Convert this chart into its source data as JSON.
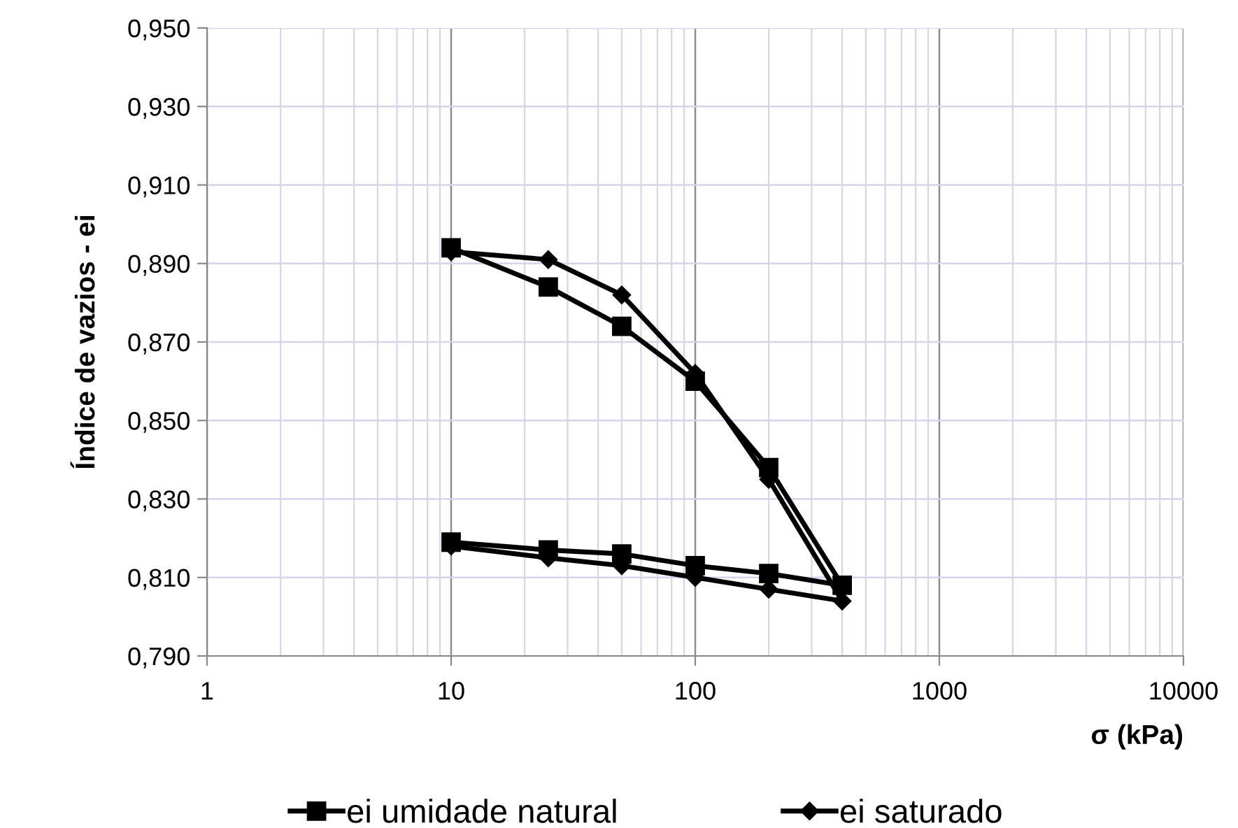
{
  "chart_data": {
    "type": "line",
    "xlabel": "σ (kPa)",
    "ylabel": "Índice de vazios - ei",
    "log": "x",
    "xlim": [
      1,
      10000
    ],
    "xticks": [
      1,
      10,
      100,
      1000,
      10000
    ],
    "ylim": [
      0.79,
      0.95
    ],
    "yticks": [
      {
        "value": 0.79,
        "label": "0,790"
      },
      {
        "value": 0.81,
        "label": "0,810"
      },
      {
        "value": 0.83,
        "label": "0,830"
      },
      {
        "value": 0.85,
        "label": "0,850"
      },
      {
        "value": 0.87,
        "label": "0,870"
      },
      {
        "value": 0.89,
        "label": "0,890"
      },
      {
        "value": 0.91,
        "label": "0,910"
      },
      {
        "value": 0.93,
        "label": "0,930"
      },
      {
        "value": 0.95,
        "label": "0,950"
      }
    ],
    "grid": true,
    "legend": "bottom",
    "line_style": "solid",
    "series": [
      {
        "name": "ei umidade natural",
        "color": "#000000",
        "marker": "square",
        "x": [
          10,
          25,
          50,
          100,
          200,
          400,
          200,
          100,
          50,
          25,
          10
        ],
        "values": [
          0.894,
          0.884,
          0.874,
          0.86,
          0.838,
          0.808,
          0.811,
          0.813,
          0.816,
          0.817,
          0.819
        ]
      },
      {
        "name": "ei saturado",
        "color": "#000000",
        "marker": "diamond",
        "x": [
          10,
          25,
          50,
          100,
          200,
          400,
          200,
          100,
          50,
          25,
          10
        ],
        "values": [
          0.893,
          0.891,
          0.882,
          0.862,
          0.835,
          0.804,
          0.807,
          0.81,
          0.813,
          0.815,
          0.818
        ]
      }
    ]
  }
}
